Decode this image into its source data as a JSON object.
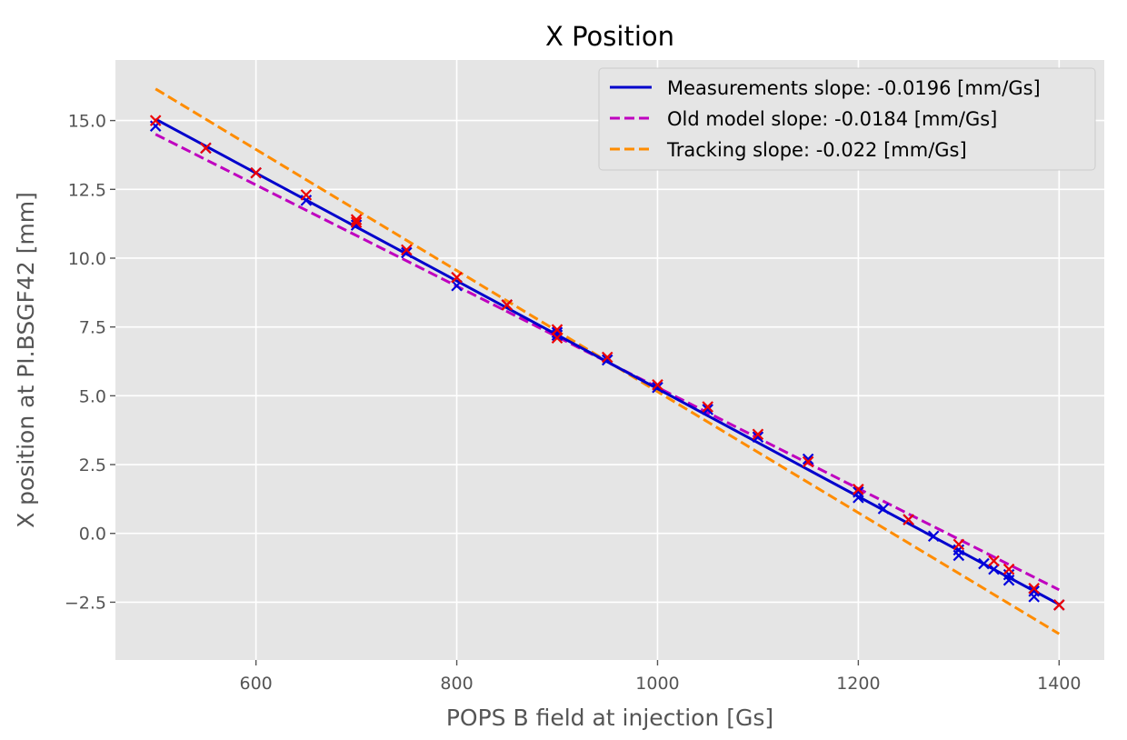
{
  "chart_data": {
    "type": "scatter",
    "title": "X Position",
    "xlabel": "POPS B field at injection [Gs]",
    "ylabel": "X position at PI.BSGF42 [mm]",
    "xlim": [
      460,
      1445
    ],
    "ylim": [
      -4.6,
      17.2
    ],
    "xticks": [
      600,
      800,
      1000,
      1200,
      1400
    ],
    "xtick_labels": [
      "600",
      "800",
      "1000",
      "1200",
      "1400"
    ],
    "yticks": [
      -2.5,
      0.0,
      2.5,
      5.0,
      7.5,
      10.0,
      12.5,
      15.0
    ],
    "ytick_labels": [
      "−2.5",
      "0.0",
      "2.5",
      "5.0",
      "7.5",
      "10.0",
      "12.5",
      "15.0"
    ],
    "grid": true,
    "legend_position": "top-right",
    "lines": [
      {
        "name": "Measurements slope: -0.0196 [mm/Gs]",
        "color": "#0000cc",
        "style": "solid",
        "x": [
          500,
          1400
        ],
        "y": [
          15.05,
          -2.58
        ]
      },
      {
        "name": "Old model slope: -0.0184 [mm/Gs]",
        "color": "#bf00bf",
        "style": "dashed",
        "x": [
          500,
          1400
        ],
        "y": [
          14.5,
          -2.05
        ]
      },
      {
        "name": "Tracking slope: -0.022 [mm/Gs]",
        "color": "#ff8c00",
        "style": "dashed",
        "x": [
          500,
          1400
        ],
        "y": [
          16.15,
          -3.65
        ]
      }
    ],
    "scatter_series": [
      {
        "color": "#0000dd",
        "marker": "x",
        "x": [
          500,
          550,
          600,
          650,
          700,
          750,
          800,
          850,
          900,
          900,
          950,
          1000,
          1050,
          1100,
          1150,
          1200,
          1200,
          1225,
          1250,
          1275,
          1300,
          1300,
          1325,
          1335,
          1350,
          1350,
          1375,
          1375,
          1400
        ],
        "y": [
          14.8,
          14.0,
          13.1,
          12.1,
          11.2,
          10.2,
          9.0,
          8.3,
          7.2,
          7.3,
          6.3,
          5.3,
          4.5,
          3.5,
          2.7,
          1.3,
          1.5,
          0.9,
          0.5,
          -0.1,
          -0.6,
          -0.8,
          -1.1,
          -1.3,
          -1.5,
          -1.7,
          -2.1,
          -2.3,
          -2.6
        ]
      },
      {
        "color": "#ee0000",
        "marker": "x",
        "x": [
          500,
          550,
          600,
          650,
          700,
          700,
          750,
          800,
          850,
          900,
          900,
          950,
          1000,
          1050,
          1100,
          1150,
          1200,
          1250,
          1300,
          1335,
          1350,
          1375,
          1400
        ],
        "y": [
          15.0,
          14.0,
          13.1,
          12.3,
          11.3,
          11.4,
          10.3,
          9.3,
          8.3,
          7.1,
          7.4,
          6.4,
          5.4,
          4.6,
          3.6,
          2.6,
          1.6,
          0.5,
          -0.4,
          -1.0,
          -1.3,
          -2.0,
          -2.6
        ]
      }
    ]
  }
}
